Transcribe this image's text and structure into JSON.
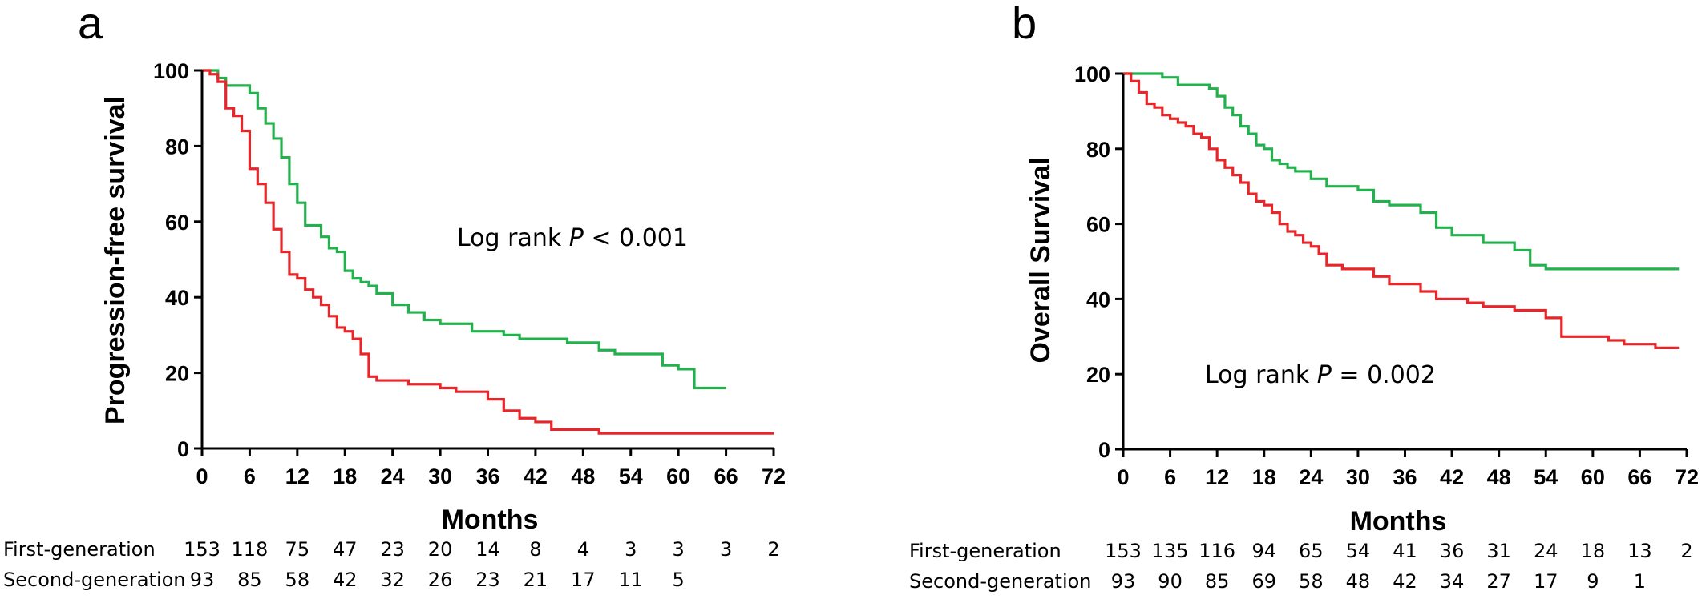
{
  "chart_data": [
    {
      "panel": "a",
      "type": "line",
      "step": true,
      "xlabel": "Months",
      "ylabel": "Progression-free survival",
      "xlim": [
        0,
        72
      ],
      "ylim": [
        0,
        100
      ],
      "xticks": [
        0,
        6,
        12,
        18,
        24,
        30,
        36,
        42,
        48,
        54,
        60,
        66,
        72
      ],
      "yticks": [
        0,
        20,
        40,
        60,
        80,
        100
      ],
      "grid": false,
      "annotation": {
        "prefix": "Log rank ",
        "italic": "P",
        "suffix": " < 0.001"
      },
      "series": [
        {
          "color": "#22b14c",
          "x": [
            0,
            1,
            2,
            3,
            4,
            5,
            6,
            7,
            8,
            9,
            10,
            11,
            12,
            13,
            14,
            15,
            16,
            17,
            18,
            19,
            20,
            21,
            22,
            24,
            26,
            28,
            30,
            32,
            34,
            36,
            38,
            40,
            42,
            44,
            46,
            48,
            50,
            52,
            54,
            56,
            58,
            60,
            62,
            64,
            66
          ],
          "y": [
            100,
            100,
            98,
            96,
            96,
            96,
            94,
            90,
            86,
            82,
            77,
            70,
            65,
            59,
            59,
            56,
            53,
            52,
            47,
            45,
            44,
            43,
            41,
            38,
            36,
            34,
            33,
            33,
            31,
            31,
            30,
            29,
            29,
            29,
            28,
            28,
            26,
            25,
            25,
            25,
            22,
            21,
            16,
            16,
            16
          ]
        },
        {
          "color": "#e8262a",
          "x": [
            0,
            1,
            2,
            3,
            4,
            5,
            6,
            7,
            8,
            9,
            10,
            11,
            12,
            13,
            14,
            15,
            16,
            17,
            18,
            19,
            20,
            21,
            22,
            24,
            26,
            28,
            30,
            32,
            34,
            36,
            38,
            40,
            42,
            44,
            46,
            48,
            50,
            52,
            60,
            66,
            72
          ],
          "y": [
            100,
            99,
            97,
            90,
            88,
            84,
            74,
            70,
            65,
            58,
            52,
            46,
            45,
            42,
            40,
            38,
            35,
            32,
            31,
            29,
            25,
            19,
            18,
            18,
            17,
            17,
            16,
            15,
            15,
            13,
            10,
            8,
            7,
            5,
            5,
            5,
            4,
            4,
            4,
            4,
            4
          ]
        }
      ],
      "risk_table": {
        "rows": [
          {
            "label": "First-generation",
            "values": [
              "153",
              "118",
              "75",
              "47",
              "23",
              "20",
              "14",
              "8",
              "4",
              "3",
              "3",
              "3",
              "2"
            ]
          },
          {
            "label": "Second-generation",
            "values": [
              "93",
              "85",
              "58",
              "42",
              "32",
              "26",
              "23",
              "21",
              "17",
              "11",
              "5"
            ]
          }
        ]
      }
    },
    {
      "panel": "b",
      "type": "line",
      "step": true,
      "xlabel": "Months",
      "ylabel": "Overall Survival",
      "xlim": [
        0,
        72
      ],
      "ylim": [
        0,
        100
      ],
      "xticks": [
        0,
        6,
        12,
        18,
        24,
        30,
        36,
        42,
        48,
        54,
        60,
        66,
        72
      ],
      "yticks": [
        0,
        20,
        40,
        60,
        80,
        100
      ],
      "grid": false,
      "annotation": {
        "prefix": "Log rank ",
        "italic": "P",
        "suffix": " = 0.002"
      },
      "series": [
        {
          "color": "#22b14c",
          "x": [
            0,
            1,
            3,
            5,
            7,
            9,
            10,
            11,
            12,
            13,
            14,
            15,
            16,
            17,
            18,
            19,
            20,
            21,
            22,
            24,
            26,
            28,
            30,
            32,
            34,
            36,
            38,
            40,
            42,
            44,
            46,
            48,
            50,
            52,
            54,
            56,
            60,
            64,
            68,
            71
          ],
          "y": [
            100,
            100,
            100,
            99,
            97,
            97,
            97,
            96,
            94,
            91,
            89,
            86,
            84,
            81,
            80,
            77,
            76,
            75,
            74,
            72,
            70,
            70,
            69,
            66,
            65,
            65,
            63,
            59,
            57,
            57,
            55,
            55,
            53,
            49,
            48,
            48,
            48,
            48,
            48,
            48
          ]
        },
        {
          "color": "#e8262a",
          "x": [
            0,
            1,
            2,
            3,
            4,
            5,
            6,
            7,
            8,
            9,
            10,
            11,
            12,
            13,
            14,
            15,
            16,
            17,
            18,
            19,
            20,
            21,
            22,
            23,
            24,
            25,
            26,
            28,
            30,
            32,
            34,
            36,
            38,
            40,
            42,
            44,
            46,
            48,
            50,
            52,
            54,
            56,
            58,
            60,
            62,
            64,
            66,
            68,
            71
          ],
          "y": [
            100,
            98,
            95,
            92,
            91,
            89,
            88,
            87,
            86,
            84,
            83,
            80,
            77,
            75,
            73,
            71,
            68,
            66,
            65,
            63,
            60,
            58,
            57,
            55,
            54,
            52,
            49,
            48,
            48,
            46,
            44,
            44,
            42,
            40,
            40,
            39,
            38,
            38,
            37,
            37,
            35,
            30,
            30,
            30,
            29,
            28,
            28,
            27,
            27
          ]
        }
      ],
      "risk_table": {
        "rows": [
          {
            "label": "First-generation",
            "values": [
              "153",
              "135",
              "116",
              "94",
              "65",
              "54",
              "41",
              "36",
              "31",
              "24",
              "18",
              "13",
              "2"
            ]
          },
          {
            "label": "Second-generation",
            "values": [
              "93",
              "90",
              "85",
              "69",
              "58",
              "48",
              "42",
              "34",
              "27",
              "17",
              "9",
              "1"
            ]
          }
        ]
      }
    }
  ]
}
